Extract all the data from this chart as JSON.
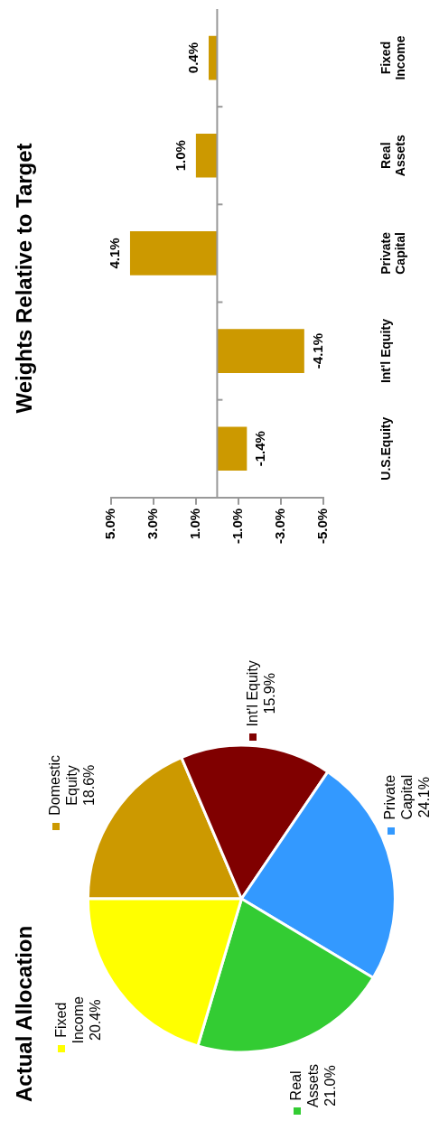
{
  "chart_data": [
    {
      "type": "pie",
      "title": "Actual Allocation",
      "categories": [
        "Domestic Equity",
        "Int'l Equity",
        "Private Capital",
        "Real Assets",
        "Fixed Income"
      ],
      "values": [
        18.6,
        15.9,
        24.1,
        21.0,
        20.4
      ],
      "value_labels": [
        "18.6%",
        "15.9%",
        "24.1%",
        "21.0%",
        "20.4%"
      ],
      "colors": [
        "#cc9900",
        "#800000",
        "#3399ff",
        "#33cc33",
        "#ffff00"
      ]
    },
    {
      "type": "bar",
      "title": "Weights Relative to Target",
      "orientation": "horizontal",
      "categories": [
        "Fixed Income",
        "Real Assets",
        "Private Capital",
        "Int'l Equity",
        "U.S.Equity"
      ],
      "values": [
        0.4,
        1.0,
        4.1,
        -4.1,
        -1.4
      ],
      "value_labels": [
        "0.4%",
        "1.0%",
        "4.1%",
        "-4.1%",
        "-1.4%"
      ],
      "color": "#cc9900",
      "xlim": [
        5,
        -5
      ],
      "xticks": [
        {
          "value": 5,
          "label": "5.0%"
        },
        {
          "value": 3,
          "label": "3.0%"
        },
        {
          "value": 1,
          "label": "1.0%"
        },
        {
          "value": -1,
          "label": "-1.0%"
        },
        {
          "value": -3,
          "label": "-3.0%"
        },
        {
          "value": -5,
          "label": "-5.0%"
        }
      ],
      "grid": false
    }
  ]
}
